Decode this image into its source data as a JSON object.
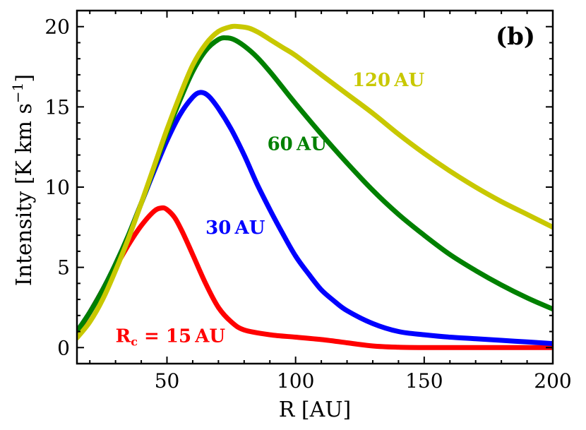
{
  "chart_data": {
    "type": "line",
    "panel_label": "(b)",
    "xlabel": "R [AU]",
    "ylabel_main": "Intensity [K km s",
    "ylabel_sup": "−1",
    "ylabel_close": "]",
    "xlim": [
      15,
      200
    ],
    "ylim": [
      -1,
      21
    ],
    "xticks": [
      50,
      100,
      150,
      200
    ],
    "xtick_labels": [
      "50",
      "100",
      "150",
      "200"
    ],
    "yticks": [
      0,
      5,
      10,
      15,
      20
    ],
    "ytick_labels": [
      "0",
      "5",
      "10",
      "15",
      "20"
    ],
    "series": [
      {
        "name": "15 AU",
        "label_parts": [
          "R",
          "c",
          " = 15 AU"
        ],
        "color": "#ff0000",
        "x": [
          15,
          20,
          25,
          30,
          35,
          40,
          45,
          48,
          50,
          53,
          56,
          60,
          65,
          70,
          75,
          80,
          90,
          100,
          110,
          120,
          130,
          140,
          150,
          160,
          170,
          180,
          190,
          200
        ],
        "y": [
          0.9,
          2.2,
          3.6,
          5.0,
          6.4,
          7.6,
          8.5,
          8.7,
          8.6,
          8.1,
          7.2,
          5.8,
          4.0,
          2.5,
          1.6,
          1.1,
          0.8,
          0.65,
          0.5,
          0.3,
          0.1,
          0.02,
          0.0,
          0.0,
          0.0,
          0.0,
          0.0,
          0.0
        ]
      },
      {
        "name": "30 AU",
        "label_parts": [
          "",
          "",
          "30 AU"
        ],
        "color": "#0000ff",
        "x": [
          15,
          20,
          25,
          30,
          35,
          40,
          45,
          50,
          55,
          60,
          63,
          66,
          70,
          75,
          80,
          85,
          90,
          95,
          100,
          105,
          110,
          115,
          120,
          130,
          140,
          150,
          160,
          170,
          180,
          190,
          200
        ],
        "y": [
          1.0,
          2.2,
          3.6,
          5.2,
          7.0,
          9.0,
          11.0,
          12.9,
          14.5,
          15.6,
          15.9,
          15.7,
          14.9,
          13.6,
          12.0,
          10.2,
          8.6,
          7.1,
          5.7,
          4.6,
          3.6,
          2.9,
          2.3,
          1.5,
          1.0,
          0.8,
          0.65,
          0.55,
          0.45,
          0.35,
          0.25
        ]
      },
      {
        "name": "60 AU",
        "label_parts": [
          "",
          "",
          "60 AU"
        ],
        "color": "#008000",
        "x": [
          15,
          20,
          25,
          30,
          35,
          40,
          45,
          50,
          55,
          60,
          65,
          70,
          73,
          76,
          80,
          85,
          90,
          95,
          100,
          110,
          120,
          130,
          140,
          150,
          160,
          170,
          180,
          190,
          200
        ],
        "y": [
          1.0,
          2.2,
          3.6,
          5.2,
          7.0,
          9.0,
          11.2,
          13.4,
          15.4,
          17.2,
          18.5,
          19.2,
          19.3,
          19.2,
          18.8,
          18.1,
          17.2,
          16.2,
          15.2,
          13.3,
          11.5,
          9.8,
          8.3,
          7.0,
          5.8,
          4.8,
          3.9,
          3.1,
          2.4
        ]
      },
      {
        "name": "120 AU",
        "label_parts": [
          "",
          "",
          "120 AU"
        ],
        "color": "#c8c800",
        "x": [
          15,
          20,
          25,
          30,
          35,
          40,
          45,
          50,
          55,
          60,
          65,
          70,
          75,
          78,
          82,
          86,
          90,
          95,
          100,
          110,
          120,
          130,
          140,
          150,
          160,
          170,
          180,
          190,
          200
        ],
        "y": [
          0.6,
          1.6,
          3.0,
          4.8,
          6.8,
          9.0,
          11.3,
          13.6,
          15.7,
          17.6,
          18.9,
          19.7,
          20.0,
          20.0,
          19.9,
          19.6,
          19.2,
          18.7,
          18.2,
          17.0,
          15.8,
          14.6,
          13.3,
          12.1,
          11.0,
          10.0,
          9.1,
          8.3,
          7.5
        ]
      }
    ]
  }
}
